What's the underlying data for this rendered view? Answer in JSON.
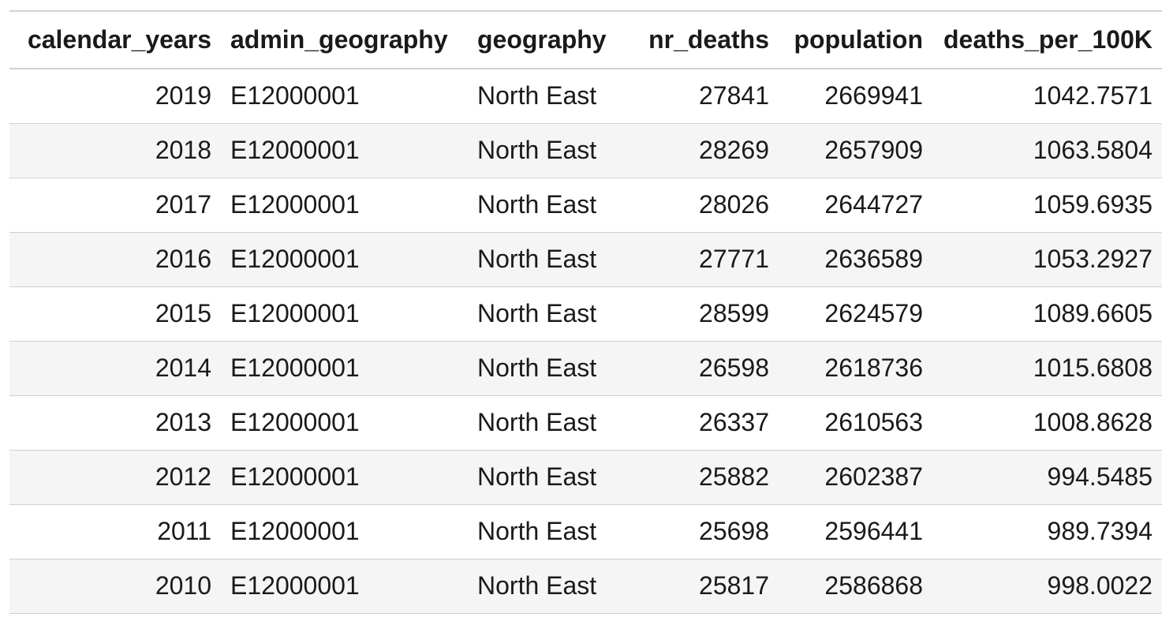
{
  "table": {
    "columns": [
      {
        "key": "calendar_years",
        "label": "calendar_years",
        "align": "right"
      },
      {
        "key": "admin_geography",
        "label": "admin_geography",
        "align": "left"
      },
      {
        "key": "geography",
        "label": "geography",
        "align": "left"
      },
      {
        "key": "nr_deaths",
        "label": "nr_deaths",
        "align": "right"
      },
      {
        "key": "population",
        "label": "population",
        "align": "right"
      },
      {
        "key": "deaths_per_100K",
        "label": "deaths_per_100K",
        "align": "right"
      }
    ],
    "rows": [
      [
        "2019",
        "E12000001",
        "North East",
        "27841",
        "2669941",
        "1042.7571"
      ],
      [
        "2018",
        "E12000001",
        "North East",
        "28269",
        "2657909",
        "1063.5804"
      ],
      [
        "2017",
        "E12000001",
        "North East",
        "28026",
        "2644727",
        "1059.6935"
      ],
      [
        "2016",
        "E12000001",
        "North East",
        "27771",
        "2636589",
        "1053.2927"
      ],
      [
        "2015",
        "E12000001",
        "North East",
        "28599",
        "2624579",
        "1089.6605"
      ],
      [
        "2014",
        "E12000001",
        "North East",
        "26598",
        "2618736",
        "1015.6808"
      ],
      [
        "2013",
        "E12000001",
        "North East",
        "26337",
        "2610563",
        "1008.8628"
      ],
      [
        "2012",
        "E12000001",
        "North East",
        "25882",
        "2602387",
        "994.5485"
      ],
      [
        "2011",
        "E12000001",
        "North East",
        "25698",
        "2596441",
        "989.7394"
      ],
      [
        "2010",
        "E12000001",
        "North East",
        "25817",
        "2586868",
        "998.0022"
      ]
    ]
  },
  "colors": {
    "header_rule": "#d3d3d3",
    "row_rule": "#cfcfcf",
    "stripe": "#f5f5f5",
    "text": "#1a1a1a"
  }
}
